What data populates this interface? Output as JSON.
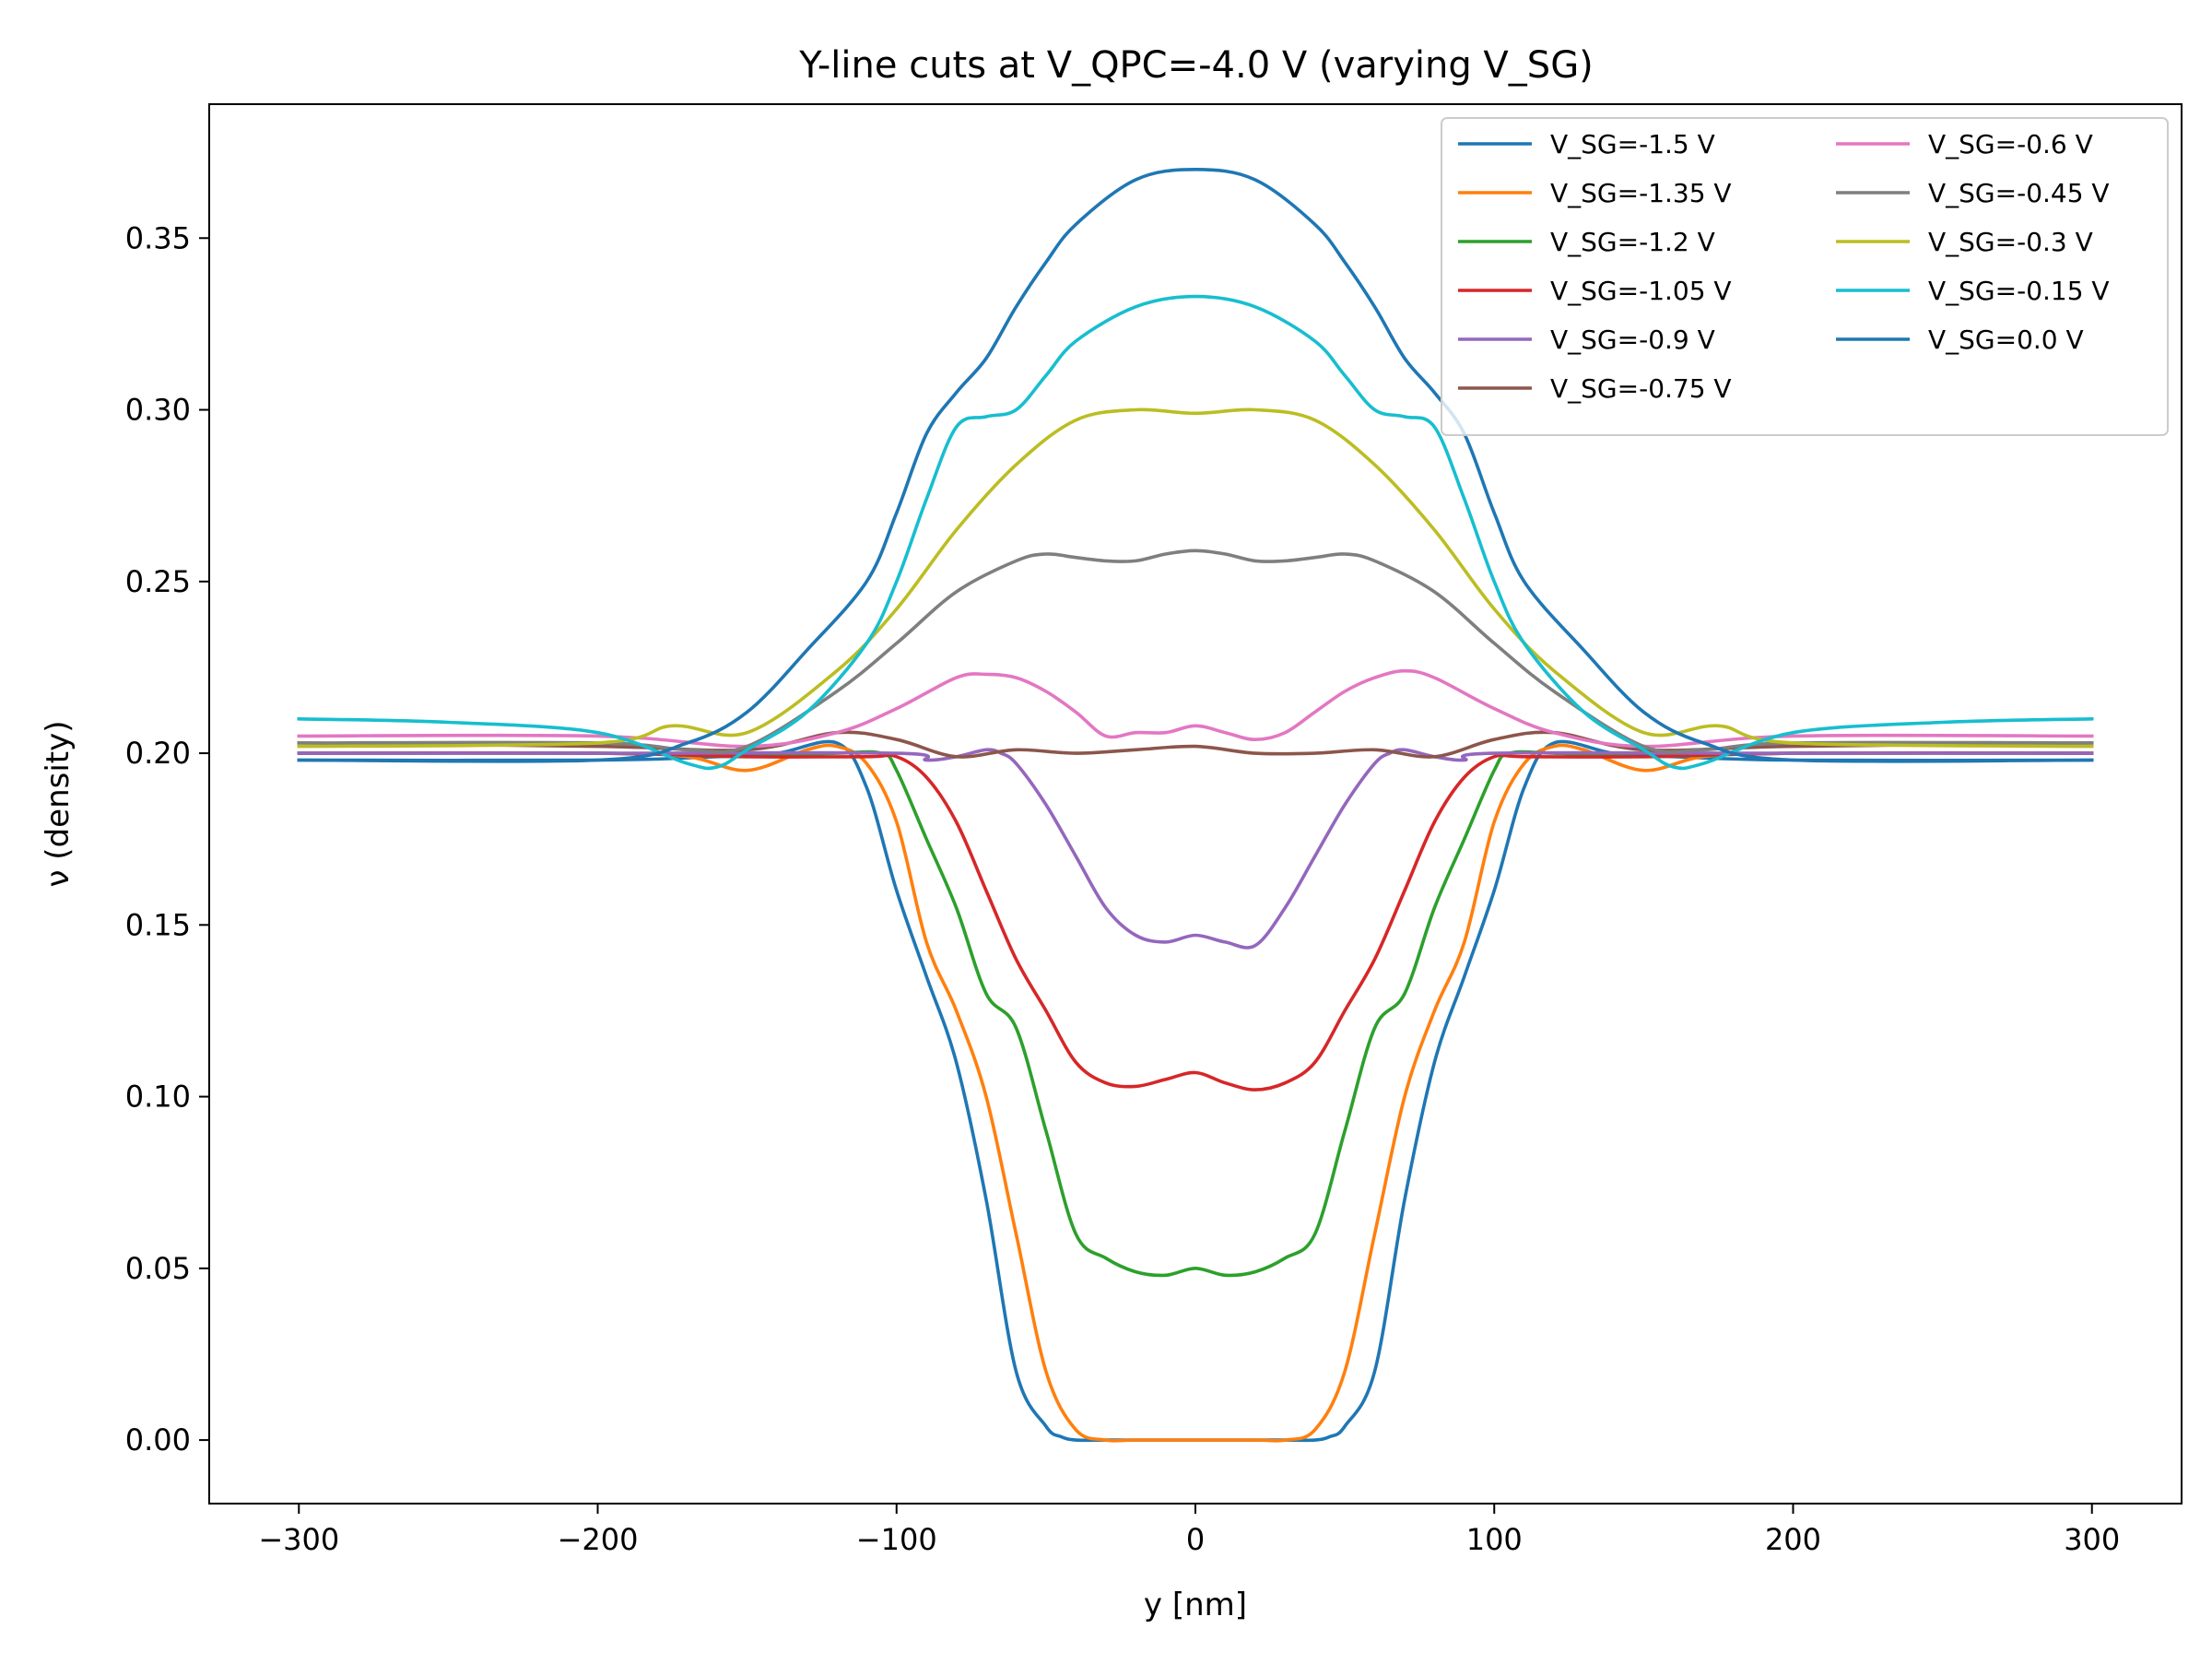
{
  "chart_data": {
    "type": "line",
    "title": "Y-line cuts at V_QPC=-4.0 V (varying V_SG)",
    "xlabel": "y [nm]",
    "ylabel": "ν (density)",
    "xlim": [
      -330,
      330
    ],
    "ylim": [
      -0.0185,
      0.389
    ],
    "xticks": [
      -300,
      -200,
      -100,
      0,
      100,
      200,
      300
    ],
    "xtick_labels": [
      "−300",
      "−200",
      "−100",
      "0",
      "100",
      "200",
      "300"
    ],
    "yticks": [
      0.0,
      0.05,
      0.1,
      0.15,
      0.2,
      0.25,
      0.3,
      0.35
    ],
    "ytick_labels": [
      "0.00",
      "0.05",
      "0.10",
      "0.15",
      "0.20",
      "0.25",
      "0.30",
      "0.35"
    ],
    "grid": false,
    "legend_position": "top-right",
    "legend_columns": 2,
    "series": [
      {
        "name": "V_SG=-1.5 V",
        "color": "#1f77b4",
        "x": [
          -300,
          -200,
          -160,
          -140,
          -120,
          -110,
          -100,
          -90,
          -80,
          -70,
          -60,
          -50,
          -45,
          -40,
          -30,
          -20,
          0,
          20,
          30,
          40,
          45,
          50,
          60,
          70,
          80,
          90,
          100,
          110,
          120,
          140,
          160,
          200,
          300
        ],
        "y": [
          0.198,
          0.198,
          0.199,
          0.2,
          0.203,
          0.19,
          0.16,
          0.135,
          0.11,
          0.07,
          0.02,
          0.004,
          0.001,
          0.0,
          0.0,
          0.0,
          0.0,
          0.0,
          0.0,
          0.0,
          0.001,
          0.004,
          0.02,
          0.07,
          0.11,
          0.135,
          0.16,
          0.19,
          0.203,
          0.2,
          0.199,
          0.198,
          0.198
        ]
      },
      {
        "name": "V_SG=-1.35 V",
        "color": "#ff7f0e",
        "x": [
          -300,
          -200,
          -170,
          -150,
          -130,
          -120,
          -110,
          -100,
          -90,
          -80,
          -70,
          -60,
          -50,
          -40,
          -30,
          -20,
          0,
          20,
          30,
          40,
          50,
          60,
          70,
          80,
          90,
          100,
          110,
          120,
          130,
          150,
          170,
          200,
          300
        ],
        "y": [
          0.2,
          0.2,
          0.199,
          0.195,
          0.201,
          0.202,
          0.197,
          0.18,
          0.145,
          0.125,
          0.1,
          0.06,
          0.02,
          0.003,
          0.0,
          0.0,
          0.0,
          0.0,
          0.0,
          0.003,
          0.02,
          0.06,
          0.1,
          0.125,
          0.145,
          0.18,
          0.197,
          0.202,
          0.201,
          0.195,
          0.199,
          0.2,
          0.2
        ]
      },
      {
        "name": "V_SG=-1.2 V",
        "color": "#2ca02c",
        "x": [
          -300,
          -200,
          -150,
          -120,
          -105,
          -100,
          -90,
          -80,
          -70,
          -60,
          -50,
          -40,
          -30,
          -20,
          -10,
          0,
          10,
          20,
          30,
          40,
          50,
          60,
          70,
          80,
          90,
          100,
          105,
          120,
          150,
          200,
          300
        ],
        "y": [
          0.2,
          0.2,
          0.199,
          0.2,
          0.2,
          0.195,
          0.175,
          0.155,
          0.13,
          0.12,
          0.09,
          0.06,
          0.053,
          0.049,
          0.048,
          0.05,
          0.048,
          0.049,
          0.053,
          0.06,
          0.09,
          0.12,
          0.13,
          0.155,
          0.175,
          0.195,
          0.2,
          0.2,
          0.199,
          0.2,
          0.2
        ]
      },
      {
        "name": "V_SG=-1.05 V",
        "color": "#d62728",
        "x": [
          -300,
          -200,
          -150,
          -110,
          -100,
          -90,
          -80,
          -70,
          -60,
          -50,
          -40,
          -30,
          -20,
          -10,
          0,
          10,
          20,
          30,
          40,
          50,
          60,
          70,
          80,
          90,
          100,
          110,
          150,
          200,
          300
        ],
        "y": [
          0.2,
          0.2,
          0.199,
          0.199,
          0.199,
          0.193,
          0.18,
          0.16,
          0.14,
          0.125,
          0.11,
          0.104,
          0.103,
          0.105,
          0.107,
          0.104,
          0.102,
          0.104,
          0.11,
          0.125,
          0.14,
          0.16,
          0.18,
          0.193,
          0.199,
          0.199,
          0.199,
          0.2,
          0.2
        ]
      },
      {
        "name": "V_SG=-0.9 V",
        "color": "#9467bd",
        "x": [
          -300,
          -200,
          -100,
          -90,
          -80,
          -70,
          -65,
          -60,
          -50,
          -40,
          -30,
          -20,
          -10,
          0,
          10,
          20,
          30,
          40,
          50,
          60,
          65,
          70,
          80,
          90,
          100,
          200,
          300
        ],
        "y": [
          0.2,
          0.2,
          0.2,
          0.198,
          0.199,
          0.201,
          0.2,
          0.197,
          0.185,
          0.17,
          0.155,
          0.147,
          0.145,
          0.147,
          0.145,
          0.144,
          0.155,
          0.17,
          0.185,
          0.197,
          0.2,
          0.201,
          0.199,
          0.198,
          0.2,
          0.2,
          0.2
        ]
      },
      {
        "name": "V_SG=-0.75 V",
        "color": "#8c564b",
        "x": [
          -300,
          -200,
          -150,
          -120,
          -100,
          -80,
          -60,
          -40,
          -20,
          0,
          20,
          40,
          60,
          80,
          100,
          120,
          150,
          200,
          300
        ],
        "y": [
          0.203,
          0.202,
          0.201,
          0.206,
          0.204,
          0.199,
          0.201,
          0.2,
          0.201,
          0.202,
          0.2,
          0.2,
          0.201,
          0.199,
          0.204,
          0.206,
          0.201,
          0.202,
          0.203
        ]
      },
      {
        "name": "V_SG=-0.6 V",
        "color": "#e377c2",
        "x": [
          -300,
          -200,
          -150,
          -120,
          -100,
          -80,
          -70,
          -60,
          -50,
          -40,
          -30,
          -20,
          -10,
          0,
          10,
          20,
          30,
          40,
          50,
          60,
          70,
          80,
          100,
          120,
          150,
          200,
          300
        ],
        "y": [
          0.205,
          0.205,
          0.202,
          0.206,
          0.213,
          0.222,
          0.223,
          0.222,
          0.218,
          0.212,
          0.205,
          0.206,
          0.206,
          0.208,
          0.206,
          0.204,
          0.206,
          0.212,
          0.218,
          0.222,
          0.224,
          0.222,
          0.213,
          0.206,
          0.202,
          0.205,
          0.205
        ]
      },
      {
        "name": "V_SG=-0.45 V",
        "color": "#7f7f7f",
        "x": [
          -300,
          -200,
          -170,
          -150,
          -120,
          -100,
          -80,
          -60,
          -50,
          -40,
          -30,
          -20,
          -10,
          0,
          10,
          20,
          30,
          40,
          50,
          60,
          80,
          100,
          120,
          150,
          170,
          200,
          300
        ],
        "y": [
          0.203,
          0.203,
          0.201,
          0.202,
          0.218,
          0.232,
          0.247,
          0.256,
          0.258,
          0.257,
          0.256,
          0.256,
          0.258,
          0.259,
          0.258,
          0.256,
          0.256,
          0.257,
          0.258,
          0.256,
          0.247,
          0.232,
          0.218,
          0.202,
          0.201,
          0.203,
          0.203
        ]
      },
      {
        "name": "V_SG=-0.3 V",
        "color": "#bcbd22",
        "x": [
          -300,
          -200,
          -175,
          -150,
          -120,
          -100,
          -80,
          -60,
          -40,
          -20,
          0,
          20,
          40,
          60,
          80,
          100,
          120,
          150,
          175,
          200,
          300
        ],
        "y": [
          0.202,
          0.203,
          0.208,
          0.206,
          0.224,
          0.242,
          0.265,
          0.284,
          0.297,
          0.3,
          0.299,
          0.3,
          0.297,
          0.284,
          0.265,
          0.242,
          0.224,
          0.206,
          0.208,
          0.203,
          0.202
        ]
      },
      {
        "name": "V_SG=-0.15 V",
        "color": "#17becf",
        "x": [
          -300,
          -250,
          -200,
          -170,
          -160,
          -150,
          -130,
          -110,
          -100,
          -90,
          -80,
          -70,
          -60,
          -50,
          -40,
          -20,
          0,
          20,
          40,
          50,
          60,
          70,
          80,
          90,
          100,
          110,
          130,
          150,
          160,
          170,
          200,
          250,
          300
        ],
        "y": [
          0.21,
          0.209,
          0.206,
          0.197,
          0.196,
          0.201,
          0.212,
          0.232,
          0.25,
          0.274,
          0.295,
          0.298,
          0.3,
          0.31,
          0.32,
          0.33,
          0.333,
          0.33,
          0.32,
          0.31,
          0.3,
          0.298,
          0.295,
          0.274,
          0.25,
          0.232,
          0.212,
          0.201,
          0.196,
          0.197,
          0.206,
          0.209,
          0.21
        ]
      },
      {
        "name": "V_SG=0.0 V",
        "color": "#1f77b4",
        "x": [
          -300,
          -200,
          -170,
          -150,
          -130,
          -110,
          -100,
          -90,
          -80,
          -70,
          -60,
          -50,
          -40,
          -20,
          0,
          20,
          40,
          50,
          60,
          70,
          80,
          90,
          100,
          110,
          130,
          150,
          170,
          200,
          300
        ],
        "y": [
          0.198,
          0.198,
          0.203,
          0.212,
          0.23,
          0.25,
          0.27,
          0.293,
          0.305,
          0.315,
          0.33,
          0.343,
          0.354,
          0.367,
          0.37,
          0.367,
          0.354,
          0.343,
          0.33,
          0.315,
          0.305,
          0.293,
          0.27,
          0.25,
          0.23,
          0.212,
          0.203,
          0.198,
          0.198
        ]
      }
    ]
  }
}
